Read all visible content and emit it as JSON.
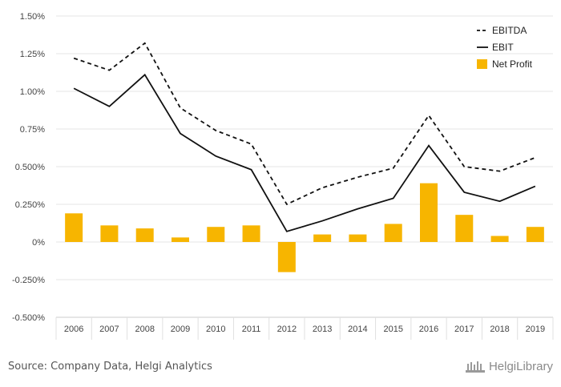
{
  "chart_data": {
    "type": "bar",
    "categories": [
      "2006",
      "2007",
      "2008",
      "2009",
      "2010",
      "2011",
      "2012",
      "2013",
      "2014",
      "2015",
      "2016",
      "2017",
      "2018",
      "2019"
    ],
    "series": [
      {
        "name": "EBITDA",
        "type": "line",
        "style": "dashed",
        "color": "#111111",
        "values": [
          1.22,
          1.14,
          1.32,
          0.89,
          0.74,
          0.65,
          0.25,
          0.36,
          0.43,
          0.49,
          0.84,
          0.5,
          0.47,
          0.56
        ]
      },
      {
        "name": "EBIT",
        "type": "line",
        "style": "solid",
        "color": "#111111",
        "values": [
          1.02,
          0.9,
          1.11,
          0.72,
          0.57,
          0.48,
          0.07,
          0.14,
          0.22,
          0.29,
          0.64,
          0.33,
          0.27,
          0.37
        ]
      },
      {
        "name": "Net Profit",
        "type": "bar",
        "color": "#F7B500",
        "values": [
          0.19,
          0.11,
          0.09,
          0.03,
          0.1,
          0.11,
          -0.2,
          0.05,
          0.05,
          0.12,
          0.39,
          0.18,
          0.04,
          0.1
        ]
      }
    ],
    "yticks": [
      "1.50%",
      "1.25%",
      "1.00%",
      "0.75%",
      "0.500%",
      "0.250%",
      "0%",
      "-0.250%",
      "-0.500%"
    ],
    "ytick_values": [
      1.5,
      1.25,
      1.0,
      0.75,
      0.5,
      0.25,
      0,
      -0.25,
      -0.5
    ],
    "ylim": [
      -0.5,
      1.5
    ],
    "grid": true,
    "legend_position": "top-right"
  },
  "footer": {
    "source": "Source: Company Data, Helgi Analytics",
    "brand": "HelgiLibrary"
  }
}
